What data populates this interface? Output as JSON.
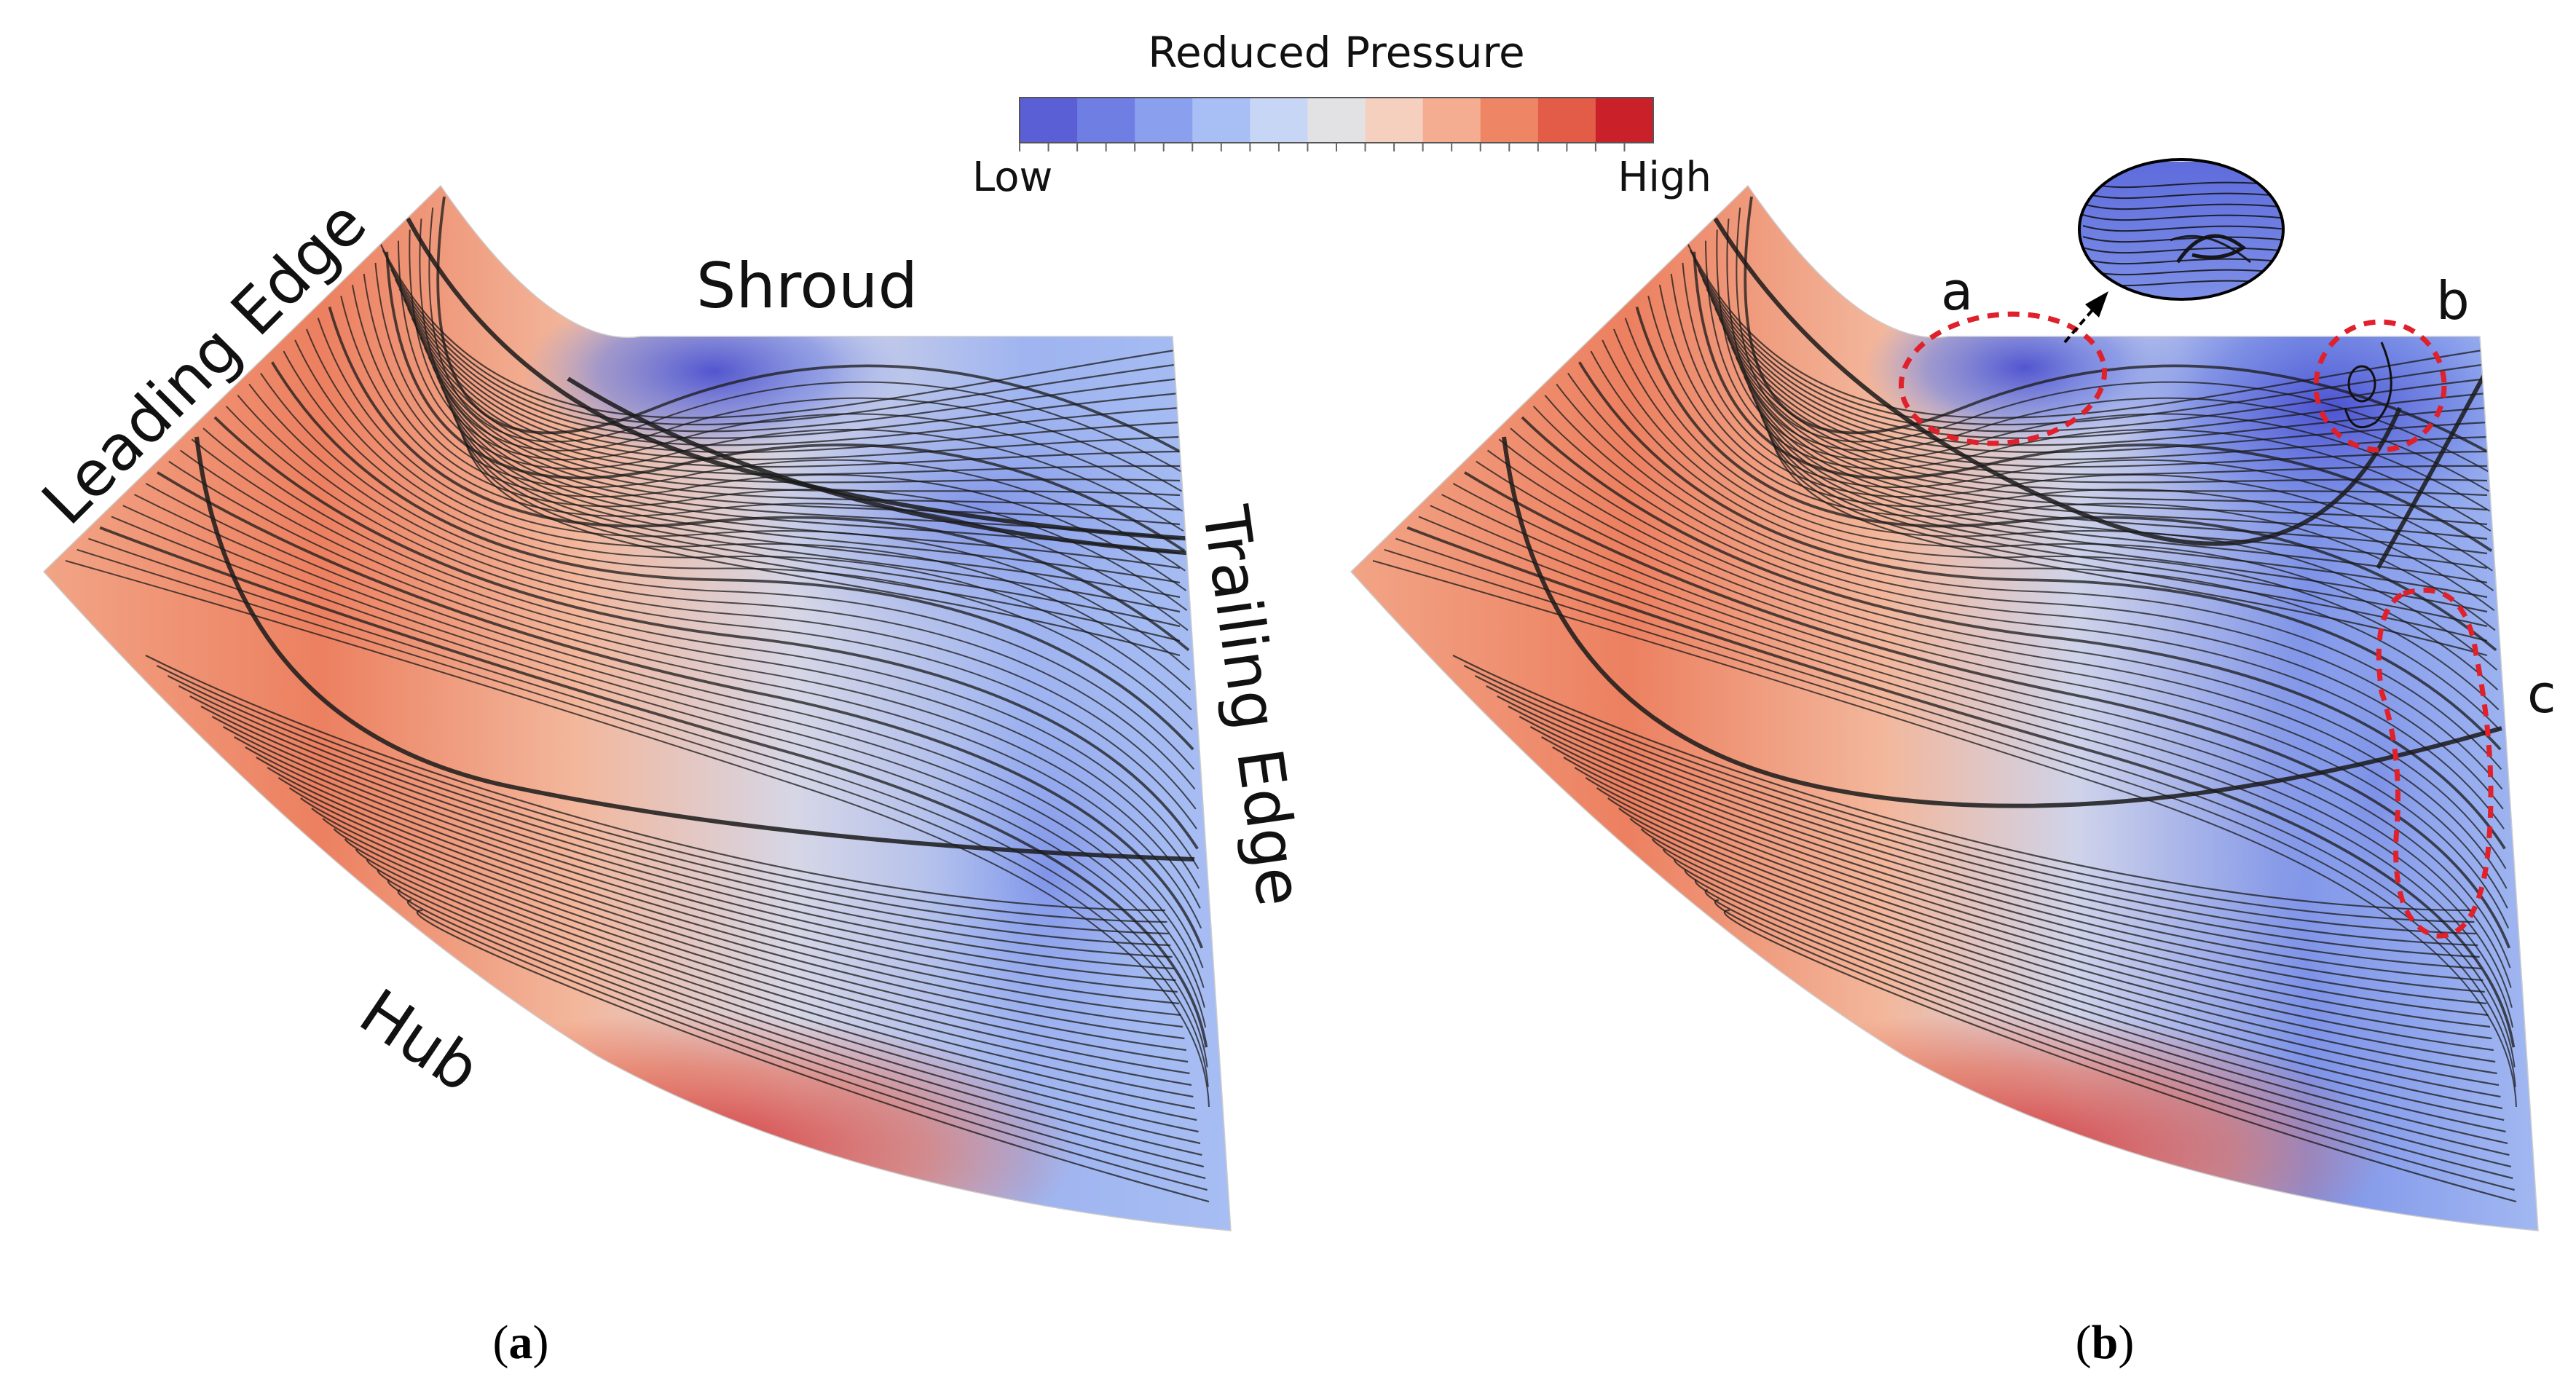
{
  "colorbar": {
    "title": "Reduced Pressure",
    "low_label": "Low",
    "high_label": "High",
    "colors": [
      "#5b5fd6",
      "#6f7ee2",
      "#8aa0ee",
      "#a8bff5",
      "#c8d6f5",
      "#e2e2e4",
      "#f6d0bf",
      "#f5ad91",
      "#ee8666",
      "#e35c48",
      "#c9202a"
    ]
  },
  "panel_a": {
    "labels": {
      "leading_edge": "Leading Edge",
      "shroud": "Shroud",
      "trailing_edge": "Trailing Edge",
      "hub": "Hub"
    },
    "caption_letter": "a"
  },
  "panel_b": {
    "annotations": {
      "a": "a",
      "b": "b",
      "c": "c"
    },
    "caption_letter": "b"
  },
  "palette": {
    "high": "#e06a4e",
    "mid": "#e4e2e6",
    "low": "#6f84e4",
    "annotation": "#e0202a"
  }
}
